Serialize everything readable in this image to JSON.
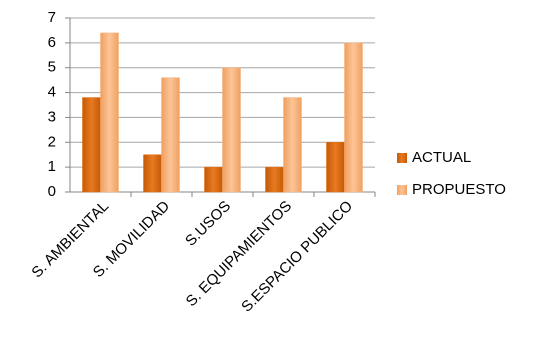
{
  "chart_data": {
    "type": "bar",
    "categories": [
      "S. AMBIENTAL",
      "S. MOVILIDAD",
      "S.USOS",
      "S. EQUIPAMIENTOS",
      "S.ESPACIO PUBLICO"
    ],
    "series": [
      {
        "name": "ACTUAL",
        "color": "#e36c0a",
        "values": [
          3.8,
          1.5,
          1,
          1,
          2
        ]
      },
      {
        "name": "PROPUESTO",
        "color": "#f8b07a",
        "values": [
          6.4,
          4.6,
          5,
          3.8,
          6
        ]
      }
    ],
    "ylim": [
      0,
      7
    ],
    "yticks": [
      0,
      1,
      2,
      3,
      4,
      5,
      6,
      7
    ],
    "grid": true,
    "legend": "right"
  }
}
